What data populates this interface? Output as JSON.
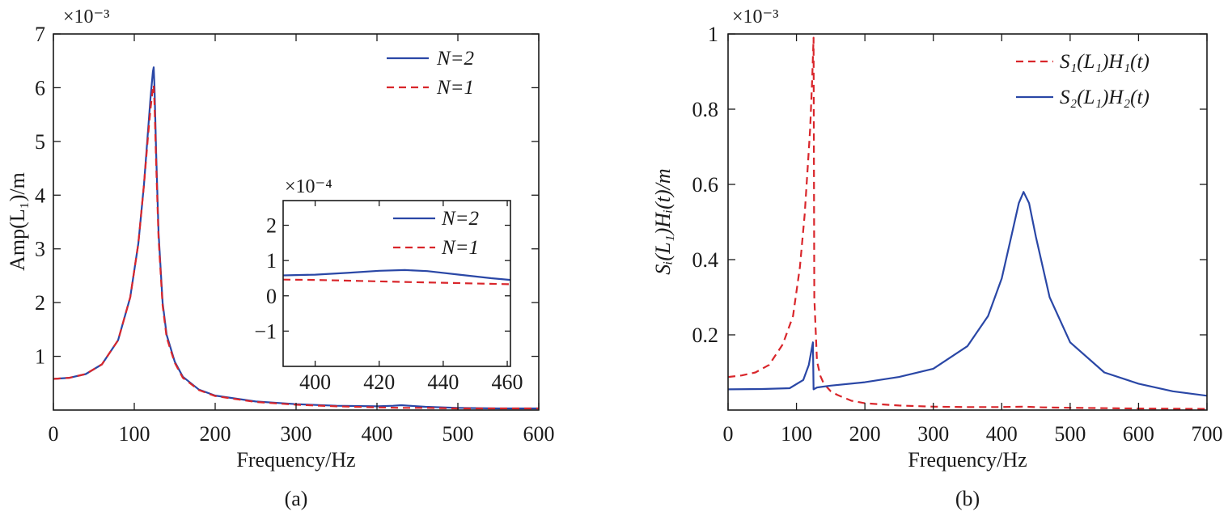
{
  "chart_data": [
    {
      "type": "line",
      "panel_label": "(a)",
      "xlabel": "Frequency/Hz",
      "ylabel": "Amp(L₁)/m",
      "y_multiplier": "×10⁻³",
      "xlim": [
        0,
        600
      ],
      "ylim": [
        0,
        7
      ],
      "xticks": [
        0,
        100,
        200,
        300,
        400,
        500,
        600
      ],
      "yticks": [
        1,
        2,
        3,
        4,
        5,
        6,
        7
      ],
      "legend_position": "top-right",
      "series": [
        {
          "name": "N=2",
          "color": "#2a47a6",
          "dash": "solid",
          "x": [
            0,
            20,
            40,
            60,
            80,
            95,
            105,
            112,
            117,
            120,
            123,
            124,
            125,
            127,
            130,
            135,
            140,
            150,
            160,
            180,
            200,
            250,
            300,
            350,
            400,
            420,
            430,
            440,
            460,
            500,
            550,
            600
          ],
          "y": [
            0.58,
            0.6,
            0.67,
            0.85,
            1.3,
            2.1,
            3.1,
            4.2,
            5.2,
            5.8,
            6.3,
            6.38,
            6.0,
            4.8,
            3.3,
            2.0,
            1.4,
            0.9,
            0.62,
            0.38,
            0.27,
            0.16,
            0.11,
            0.08,
            0.07,
            0.08,
            0.09,
            0.08,
            0.06,
            0.04,
            0.03,
            0.03
          ]
        },
        {
          "name": "N=1",
          "color": "#d9262b",
          "dash": "dashed",
          "x": [
            0,
            20,
            40,
            60,
            80,
            95,
            105,
            112,
            117,
            120,
            123,
            124,
            125,
            127,
            130,
            135,
            140,
            150,
            160,
            180,
            200,
            250,
            300,
            350,
            400,
            430,
            460,
            500,
            550,
            600
          ],
          "y": [
            0.58,
            0.6,
            0.67,
            0.85,
            1.3,
            2.1,
            3.1,
            4.2,
            5.1,
            5.6,
            6.0,
            6.05,
            5.7,
            4.6,
            3.2,
            1.95,
            1.35,
            0.88,
            0.6,
            0.37,
            0.26,
            0.15,
            0.1,
            0.07,
            0.05,
            0.04,
            0.04,
            0.03,
            0.03,
            0.03
          ]
        }
      ],
      "inset": {
        "y_multiplier": "×10⁻⁴",
        "xlim": [
          390,
          461
        ],
        "ylim": [
          -2,
          2.7
        ],
        "xticks": [
          400,
          420,
          440,
          460
        ],
        "yticks": [
          -1,
          0,
          1,
          2
        ],
        "series": [
          {
            "name": "N=2",
            "color": "#2a47a6",
            "dash": "solid",
            "x": [
              390,
              400,
              410,
              420,
              428,
              435,
              445,
              455,
              461
            ],
            "y": [
              0.58,
              0.6,
              0.65,
              0.71,
              0.73,
              0.7,
              0.6,
              0.5,
              0.45
            ]
          },
          {
            "name": "N=1",
            "color": "#d9262b",
            "dash": "dashed",
            "x": [
              390,
              400,
              410,
              420,
              430,
              440,
              450,
              461
            ],
            "y": [
              0.46,
              0.45,
              0.43,
              0.41,
              0.39,
              0.37,
              0.35,
              0.33
            ]
          }
        ]
      }
    },
    {
      "type": "line",
      "panel_label": "(b)",
      "xlabel": "Frequency/Hz",
      "ylabel": "Sᵢ(L₁)Hᵢ(t)/m",
      "y_multiplier": "×10⁻³",
      "xlim": [
        0,
        700
      ],
      "ylim": [
        0,
        1.0
      ],
      "xticks": [
        0,
        100,
        200,
        300,
        400,
        500,
        600,
        700
      ],
      "yticks": [
        0.2,
        0.4,
        0.6,
        0.8,
        1.0
      ],
      "legend_position": "top-right",
      "series": [
        {
          "name": "S₁(L₁)H₁(t)",
          "color": "#d9262b",
          "dash": "dashed",
          "x": [
            0,
            20,
            40,
            60,
            80,
            95,
            105,
            112,
            117,
            120,
            123,
            125,
            126,
            130,
            135,
            140,
            150,
            160,
            180,
            200,
            250,
            300,
            350,
            400,
            430,
            460,
            500,
            600,
            700
          ],
          "y": [
            0.088,
            0.092,
            0.1,
            0.12,
            0.175,
            0.25,
            0.38,
            0.52,
            0.66,
            0.75,
            0.88,
            0.99,
            0.3,
            0.13,
            0.09,
            0.07,
            0.05,
            0.04,
            0.025,
            0.018,
            0.012,
            0.009,
            0.008,
            0.008,
            0.009,
            0.007,
            0.006,
            0.004,
            0.003
          ]
        },
        {
          "name": "S₂(L₁)H₂(t)",
          "color": "#2a47a6",
          "dash": "solid",
          "x": [
            0,
            50,
            90,
            110,
            118,
            122,
            124,
            125,
            130,
            150,
            200,
            250,
            300,
            350,
            380,
            400,
            415,
            425,
            432,
            440,
            450,
            470,
            500,
            550,
            600,
            650,
            700
          ],
          "y": [
            0.055,
            0.056,
            0.058,
            0.08,
            0.12,
            0.16,
            0.18,
            0.055,
            0.06,
            0.065,
            0.074,
            0.088,
            0.11,
            0.17,
            0.25,
            0.35,
            0.47,
            0.55,
            0.58,
            0.55,
            0.46,
            0.3,
            0.18,
            0.1,
            0.07,
            0.05,
            0.038
          ]
        }
      ]
    }
  ]
}
